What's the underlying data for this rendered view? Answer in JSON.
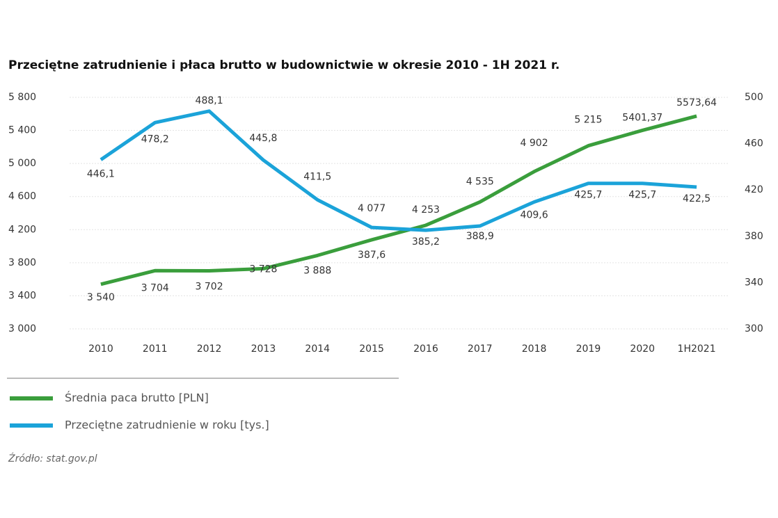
{
  "chart_data": {
    "type": "line",
    "title": "Przeciętne zatrudnienie i płaca brutto w budownictwie w okresie 2010 - 1H 2021 r.",
    "categories": [
      "2010",
      "2011",
      "2012",
      "2013",
      "2014",
      "2015",
      "2016",
      "2017",
      "2018",
      "2019",
      "2020",
      "1H2021"
    ],
    "series": [
      {
        "name": "Średnia paca brutto [PLN]",
        "color": "#3a9e3c",
        "values": [
          3540,
          3704,
          3702,
          3728,
          3888,
          4077,
          4253,
          4535,
          4902,
          5215,
          5401.37,
          5573.64
        ],
        "value_labels": [
          "3 540",
          "3 704",
          "3 702",
          "3 728",
          "3 888",
          "4 077",
          "4 253",
          "4 535",
          "4 902",
          "5 215",
          "5401,37",
          "5573,64"
        ]
      },
      {
        "name": "Przeciętne zatrudnienie w roku [tys.]",
        "color": "#1ba3d9",
        "axis": "y2",
        "values": [
          446.1,
          478.2,
          488.1,
          445.8,
          411.5,
          387.6,
          385.2,
          388.9,
          409.6,
          425.7,
          425.7,
          422.5
        ],
        "value_labels": [
          "446,1",
          "478,2",
          "488,1",
          "445,8",
          "411,5",
          "387,6",
          "385,2",
          "388,9",
          "409,6",
          "425,7",
          "425,7",
          "422,5"
        ]
      }
    ],
    "ylim": [
      3000,
      5800
    ],
    "yticks": [
      {
        "value": 3000,
        "label": "3 000"
      },
      {
        "value": 3400,
        "label": "3 400"
      },
      {
        "value": 3800,
        "label": "3 800"
      },
      {
        "value": 4200,
        "label": "4 200"
      },
      {
        "value": 4600,
        "label": "4 600"
      },
      {
        "value": 5000,
        "label": "5 000"
      },
      {
        "value": 5400,
        "label": "5 400"
      },
      {
        "value": 5800,
        "label": "5 800"
      }
    ],
    "y2lim": [
      300,
      500
    ],
    "y2ticks": [
      300,
      340,
      380,
      420,
      460,
      500
    ],
    "grid": true,
    "source": "Źródło: stat.gov.pl"
  }
}
